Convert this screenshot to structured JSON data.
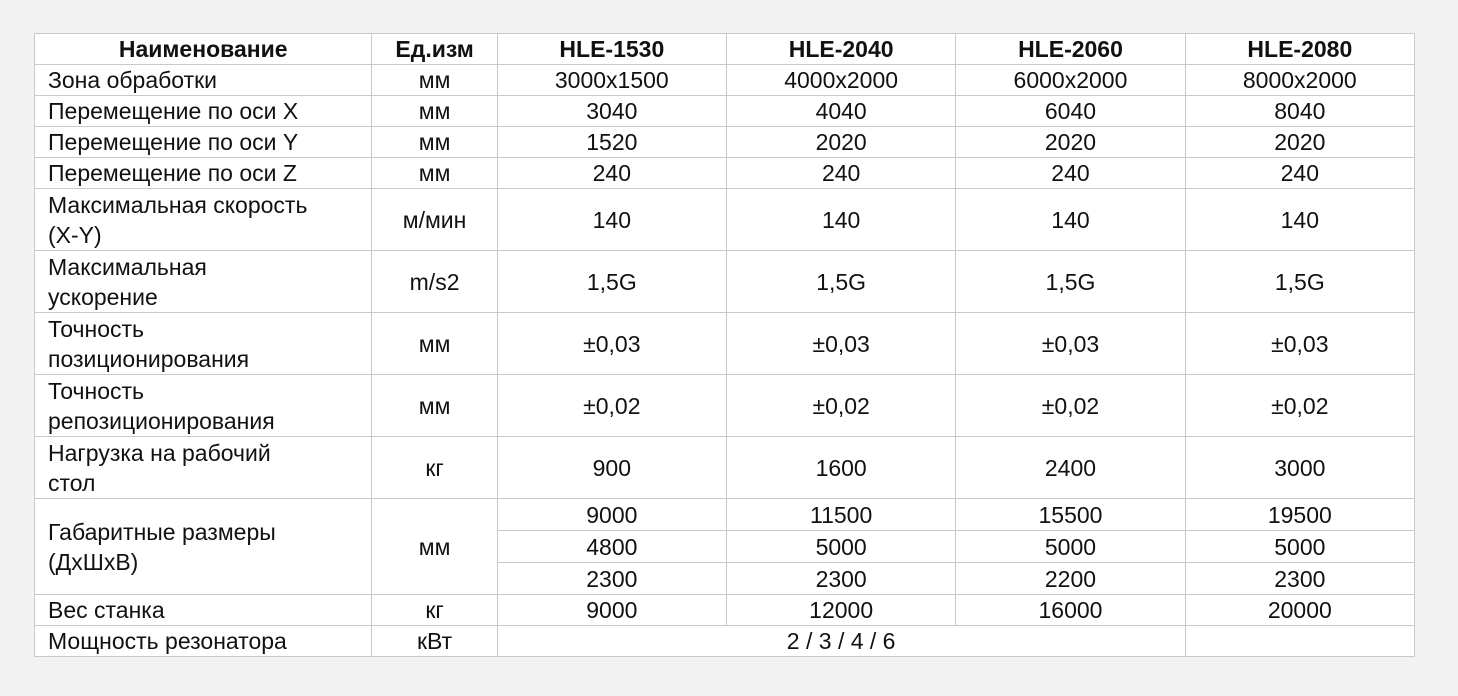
{
  "header": {
    "name": "Наименование",
    "unit": "Ед.изм",
    "models": [
      "HLE-1530",
      "HLE-2040",
      "HLE-2060",
      "HLE-2080"
    ]
  },
  "rows": [
    {
      "name": "Зона обработки",
      "unit": "мм",
      "values": [
        "3000x1500",
        "4000x2000",
        "6000x2000",
        "8000x2000"
      ]
    },
    {
      "name": "Перемещение по оси X",
      "unit": "мм",
      "values": [
        "3040",
        "4040",
        "6040",
        "8040"
      ]
    },
    {
      "name": "Перемещение по оси Y",
      "unit": "мм",
      "values": [
        "1520",
        "2020",
        "2020",
        "2020"
      ]
    },
    {
      "name": "Перемещение по оси Z",
      "unit": "мм",
      "values": [
        "240",
        "240",
        "240",
        "240"
      ]
    },
    {
      "name_lines": [
        "Максимальная скорость",
        "(X-Y)"
      ],
      "unit": "м/мин",
      "values": [
        "140",
        "140",
        "140",
        "140"
      ]
    },
    {
      "name_lines": [
        "Максимальная",
        "ускорение"
      ],
      "unit": "m/s2",
      "values": [
        "1,5G",
        "1,5G",
        "1,5G",
        "1,5G"
      ]
    },
    {
      "name_lines": [
        "Точность",
        "позиционирования"
      ],
      "unit": "мм",
      "values": [
        "±0,03",
        "±0,03",
        "±0,03",
        "±0,03"
      ]
    },
    {
      "name_lines": [
        "Точность",
        "репозиционирования"
      ],
      "unit": "мм",
      "values": [
        "±0,02",
        "±0,02",
        "±0,02",
        "±0,02"
      ]
    },
    {
      "name_lines": [
        "Нагрузка на рабочий",
        "стол"
      ],
      "unit": "кг",
      "values": [
        "900",
        "1600",
        "2400",
        "3000"
      ]
    }
  ],
  "dimensions": {
    "name_lines": [
      "Габаритные размеры",
      "(ДхШхВ)"
    ],
    "unit": "мм",
    "rows": [
      [
        "9000",
        "11500",
        "15500",
        "19500"
      ],
      [
        "4800",
        "5000",
        "5000",
        "5000"
      ],
      [
        "2300",
        "2300",
        "2200",
        "2300"
      ]
    ]
  },
  "weight": {
    "name": "Вес станка",
    "unit": "кг",
    "values": [
      "9000",
      "12000",
      "16000",
      "20000"
    ]
  },
  "power": {
    "name": "Мощность резонатора",
    "unit": "кВт",
    "value": "2 / 3 / 4 / 6"
  }
}
